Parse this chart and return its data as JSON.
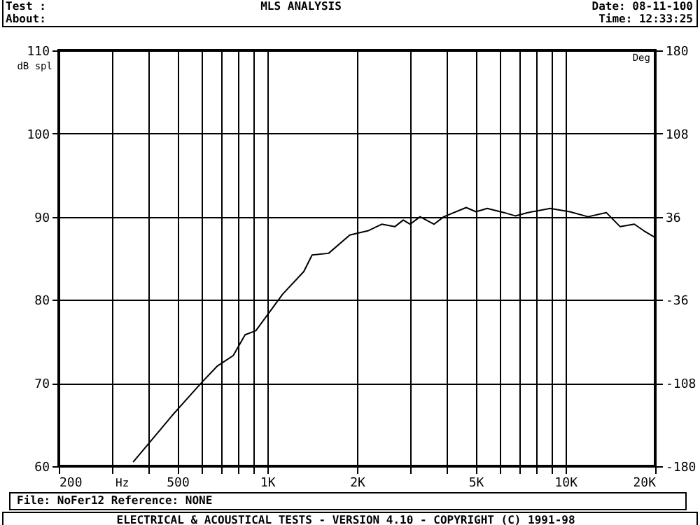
{
  "chart_data": {
    "type": "line",
    "title": "MLS ANALYSIS",
    "xlabel": "Hz",
    "ylabel": "dB spl",
    "y2label": "Deg",
    "x": [
      355,
      480,
      597,
      678,
      769,
      843,
      916,
      1127,
      1326,
      1414,
      1606,
      1892,
      2174,
      2420,
      2678,
      2858,
      3017,
      3254,
      3627,
      3910,
      4648,
      5012,
      5466,
      6222,
      6788,
      7482,
      8892,
      10344,
      11906,
      13706,
      15260,
      17020,
      18340,
      20000
    ],
    "series": [
      {
        "color": "#000000",
        "values": [
          60.5,
          66.1,
          69.9,
          72.0,
          73.3,
          75.8,
          76.3,
          80.7,
          83.4,
          85.4,
          85.6,
          87.8,
          88.3,
          89.1,
          88.8,
          89.6,
          89.1,
          90.0,
          89.1,
          90.0,
          91.1,
          90.6,
          91.0,
          90.5,
          90.1,
          90.5,
          91.0,
          90.6,
          90.0,
          90.5,
          88.8,
          89.1,
          88.3,
          87.5
        ]
      }
    ],
    "log": "x",
    "xlim": [
      200,
      20000
    ],
    "xticks": [
      {
        "value": 200,
        "label": "200"
      },
      {
        "value": 300,
        "label": null
      },
      {
        "value": 400,
        "label": null
      },
      {
        "value": 500,
        "label": "500"
      },
      {
        "value": 600,
        "label": null
      },
      {
        "value": 700,
        "label": null
      },
      {
        "value": 800,
        "label": null
      },
      {
        "value": 900,
        "label": null
      },
      {
        "value": 1000,
        "label": "1K"
      },
      {
        "value": 2000,
        "label": "2K"
      },
      {
        "value": 3000,
        "label": null
      },
      {
        "value": 4000,
        "label": null
      },
      {
        "value": 5000,
        "label": "5K"
      },
      {
        "value": 6000,
        "label": null
      },
      {
        "value": 7000,
        "label": null
      },
      {
        "value": 8000,
        "label": null
      },
      {
        "value": 9000,
        "label": null
      },
      {
        "value": 10000,
        "label": "10K"
      },
      {
        "value": 20000,
        "label": "20K"
      }
    ],
    "ylim": [
      60,
      110
    ],
    "yticks": [
      60,
      70,
      80,
      90,
      100,
      110
    ],
    "y2lim": [
      -180,
      180
    ],
    "y2ticks": [
      -180,
      -108,
      -36,
      36,
      108,
      180
    ],
    "grid": true,
    "marker": "none",
    "line_style": "solid",
    "annotations": [
      "Test :",
      "About:",
      "Date: 08-11-100",
      "Time: 12:33:25",
      "File: NoFer12  Reference: NONE",
      "ELECTRICAL & ACOUSTICAL TESTS - VERSION 4.10 - COPYRIGHT (C) 1991-98"
    ]
  }
}
